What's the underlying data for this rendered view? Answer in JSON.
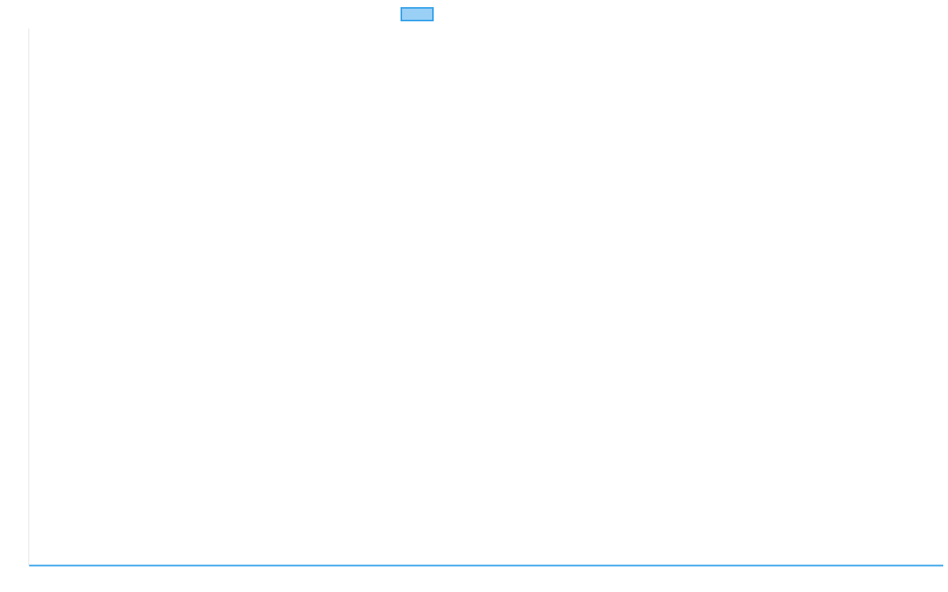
{
  "chart_data": {
    "type": "line",
    "title": "",
    "xlabel": "",
    "ylabel": "",
    "categories": [],
    "series": [
      {
        "values": [],
        "color": "#36a2eb",
        "fill": "#9ad0f5"
      }
    ],
    "legend": {
      "placement": "top",
      "entries": [
        ""
      ]
    },
    "grid": false,
    "colors": {
      "axis": "#e5e5e5",
      "baseline": "#36a2eb"
    }
  }
}
